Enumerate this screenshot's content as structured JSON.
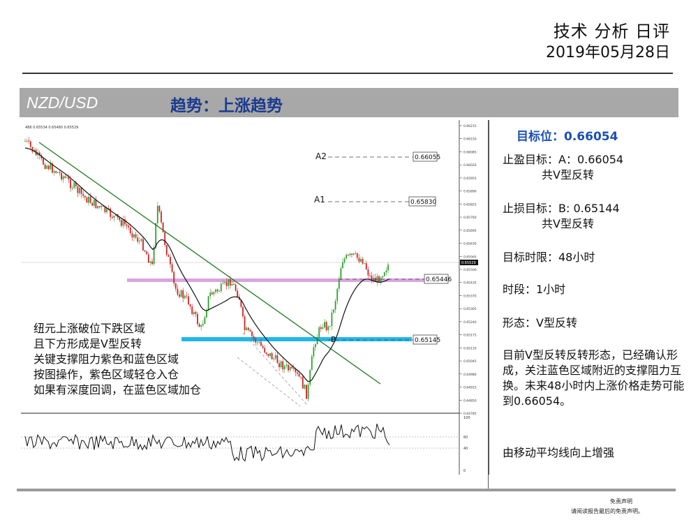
{
  "header": {
    "title": "技术 分析 日评",
    "date": "2019年05月28日"
  },
  "band": {
    "pair": "NZD/USD",
    "trend": "趋势：上涨趋势"
  },
  "chart": {
    "ohlc_text": "488 0.65534 0.65480 0.65529",
    "levels": {
      "a2_label": "A2",
      "a2_value": "0.66055",
      "a1_label": "A1",
      "a1_value": "0.65830",
      "purple_value": "0.65446",
      "blue_value": "0.65145",
      "b_label": "B"
    },
    "axis_ticks": [
      "0.66215",
      "0.66150",
      "0.66085",
      "0.66020",
      "0.65955",
      "0.65890",
      "0.65825",
      "0.65760",
      "0.65695",
      "0.65630",
      "0.65565",
      "0.65500",
      "0.65435",
      "0.65370",
      "0.65305",
      "0.65240",
      "0.65175",
      "0.65110",
      "0.65045",
      "0.64980",
      "0.64915",
      "0.64850",
      "0.64785"
    ],
    "current_price": "0.65529",
    "osc_ticks": [
      "100",
      "60",
      "40",
      "0"
    ],
    "colors": {
      "purple_zone": "#d9a6e0",
      "blue_zone": "#1fb7ea",
      "up_candle": "#2ea12e",
      "down_candle": "#cc2222",
      "trendline": "#1f7a1f",
      "ma": "#111111"
    }
  },
  "note": {
    "lines": [
      "纽元上涨破位下跌区域",
      "且下方形成是V型反转",
      "关键支撑阻力紫色和蓝色区域",
      "按图操作，紫色区域轻仓入仓",
      "如果有深度回调，在蓝色区域加仓"
    ]
  },
  "sidebar": {
    "target_title": "目标位：0.66054",
    "tp_label": "止盈目标：A：0.66054",
    "tp_sub": "共V型反转",
    "sl_label": "止损目标：B: 0.65144",
    "sl_sub": "共V型反转",
    "time_limit": "目标时限：48小时",
    "timeframe": "时段：1小时",
    "pattern": "形态：V型反转",
    "paragraph": "目前V型反转反转形态，已经确认形成，关注蓝色区域附近的支撑阻力互换。未来48小时内上涨价格走势可能到0.66054。",
    "ma_note": "由移动平均线向上增强"
  },
  "disclaimer": {
    "line1": "免责声明",
    "line2": "请阅读报告最后的免责声明。"
  }
}
